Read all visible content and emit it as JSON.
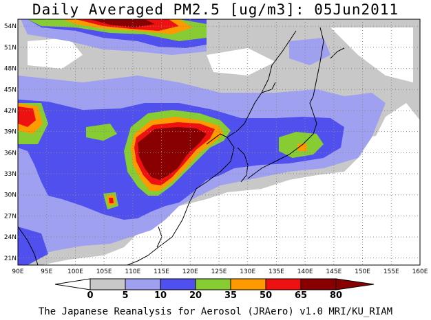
{
  "title": "Daily Averaged PM2.5 [ug/m3]: 05Jun2011",
  "footer": "The Japanese Reanalysis for Aerosol (JRAero) v1.0 MRI/KU_RIAM",
  "map": {
    "lon_range": [
      90,
      160
    ],
    "lat_range": [
      20,
      55
    ],
    "lon_ticks": [
      "90E",
      "95E",
      "100E",
      "105E",
      "110E",
      "115E",
      "120E",
      "125E",
      "130E",
      "135E",
      "140E",
      "145E",
      "150E",
      "155E",
      "160E"
    ],
    "lat_ticks": [
      "21N",
      "24N",
      "27N",
      "30N",
      "33N",
      "36N",
      "39N",
      "42N",
      "45N",
      "48N",
      "51N",
      "54N"
    ]
  },
  "legend": {
    "labels": [
      "0",
      "5",
      "10",
      "20",
      "35",
      "50",
      "65",
      "80"
    ],
    "colors": [
      "#ffffff",
      "#c8c8c8",
      "#a0a0f0",
      "#5050ee",
      "#88cc33",
      "#ff9900",
      "#ee1111",
      "#880000"
    ]
  },
  "chart_data": {
    "type": "heatmap",
    "title": "Daily Averaged PM2.5 [ug/m3]: 05Jun2011",
    "x_range": [
      90,
      160
    ],
    "y_range": [
      20,
      55
    ],
    "levels": [
      0,
      5,
      10,
      20,
      35,
      50,
      65,
      80
    ],
    "grid": true
  }
}
